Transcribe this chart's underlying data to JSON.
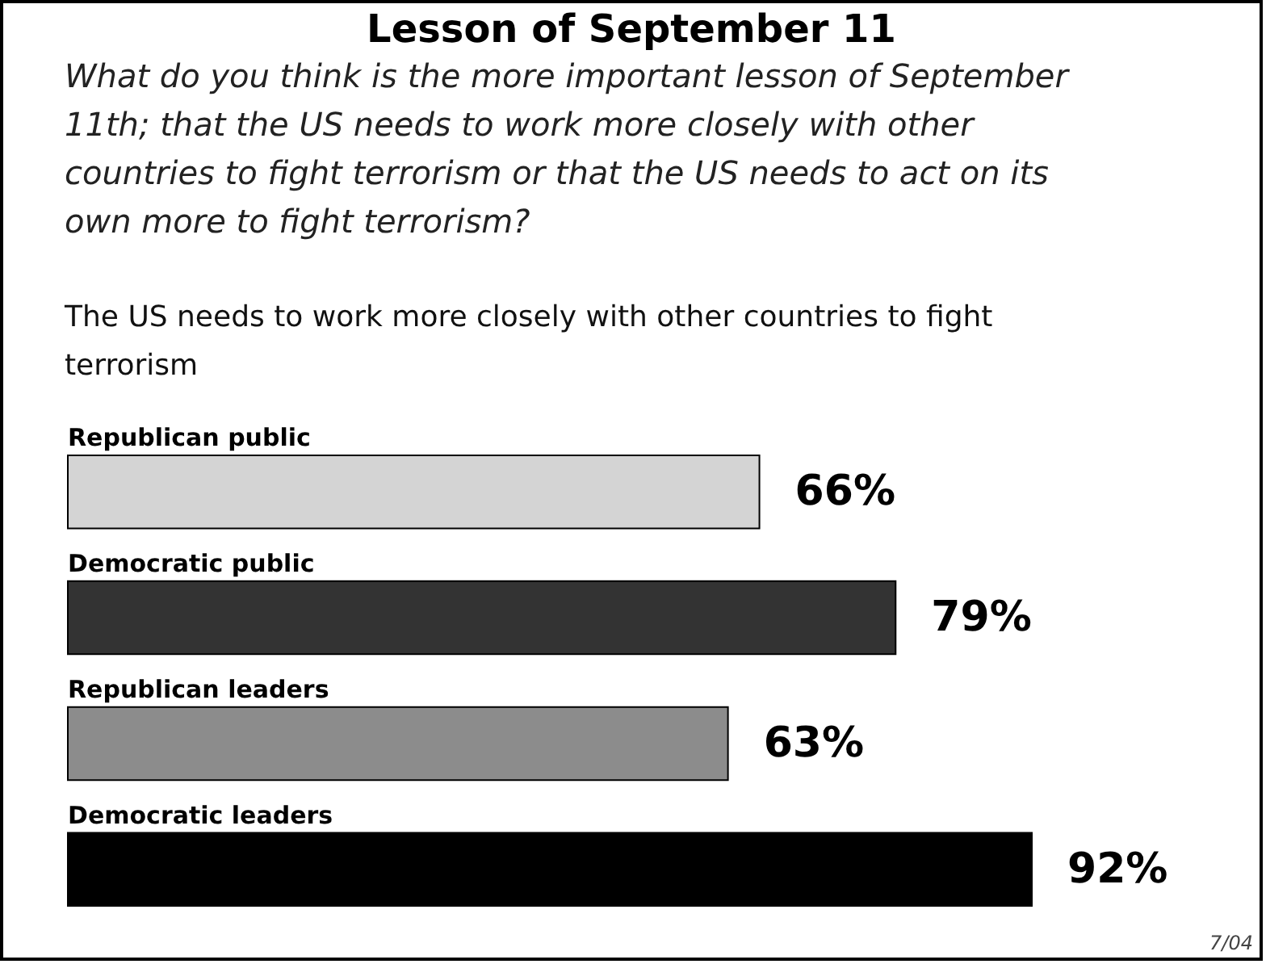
{
  "chart_data": {
    "type": "bar",
    "orientation": "horizontal",
    "title": "Lesson of September 11",
    "subtitle": "What do you think is the more important lesson of September 11th; that the US needs to work more closely with other countries to fight terrorism or that the US needs to act on its own more to fight terrorism?",
    "annotations": [
      "The US needs to work more closely with other countries to fight terrorism",
      "7/04"
    ],
    "categories": [
      "Republican public",
      "Democratic public",
      "Republican leaders",
      "Democratic leaders"
    ],
    "values": [
      66,
      79,
      63,
      92
    ],
    "colors": [
      "#d4d4d4",
      "#333333",
      "#8c8c8c",
      "#000000"
    ],
    "value_labels": [
      "66%",
      "79%",
      "63%",
      "92%"
    ]
  }
}
